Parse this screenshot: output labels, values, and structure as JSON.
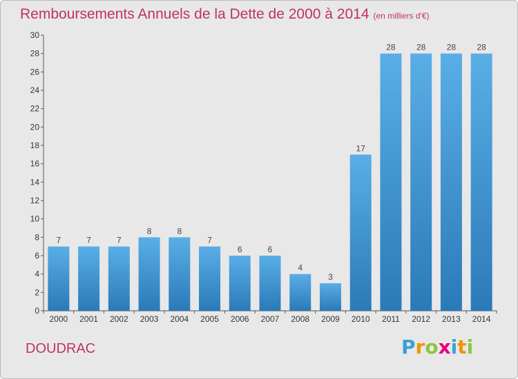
{
  "header": {
    "title": "Remboursements Annuels de la Dette de 2000 à 2014",
    "subtitle": "(en milliers d'€)"
  },
  "footer": {
    "commune": "DOUDRAC",
    "logo_letters": [
      "P",
      "r",
      "o",
      "x",
      "i",
      "t",
      "i"
    ],
    "logo_colors": [
      "#3aa0d8",
      "#f39200",
      "#8cc63f",
      "#e4007c",
      "#3aa0d8",
      "#f39200",
      "#8cc63f"
    ]
  },
  "chart_data": {
    "type": "bar",
    "categories": [
      "2000",
      "2001",
      "2002",
      "2003",
      "2004",
      "2005",
      "2006",
      "2007",
      "2008",
      "2009",
      "2010",
      "2011",
      "2012",
      "2013",
      "2014"
    ],
    "values": [
      7,
      7,
      7,
      8,
      8,
      7,
      6,
      6,
      4,
      3,
      17,
      28,
      28,
      28,
      28
    ],
    "data_labels": [
      "7",
      "7",
      "7",
      "8",
      "8",
      "7",
      "6",
      "6",
      "4",
      "3",
      "17",
      "28",
      "28",
      "28",
      "28"
    ],
    "ylim": [
      0,
      30
    ],
    "yticks": [
      0,
      2,
      4,
      6,
      8,
      10,
      12,
      14,
      16,
      18,
      20,
      22,
      24,
      26,
      28,
      30
    ],
    "grid": false,
    "bar_color_top": "#5aaee6",
    "bar_color_bottom": "#2a7ab8"
  }
}
